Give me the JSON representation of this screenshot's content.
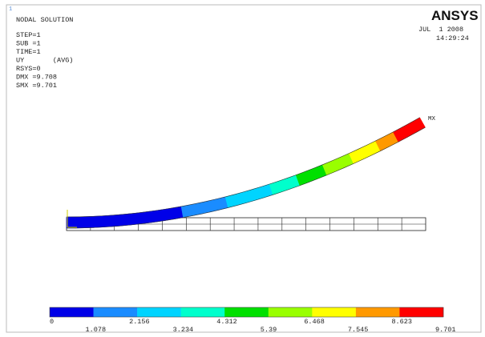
{
  "window_number": "1",
  "header": {
    "title": "NODAL SOLUTION",
    "lines": [
      "STEP=1",
      "SUB =1",
      "TIME=1",
      "UY       (AVG)",
      "RSYS=0",
      "DMX =9.708",
      "SMX =9.701"
    ]
  },
  "logo": "ANSYS",
  "date": "JUL  1 2008",
  "time": "14:29:24",
  "max_marker": "MX",
  "legend": {
    "labels": [
      "0",
      "1.078",
      "2.156",
      "3.234",
      "4.312",
      "5.39",
      "6.468",
      "7.545",
      "8.623",
      "9.701"
    ]
  }
}
